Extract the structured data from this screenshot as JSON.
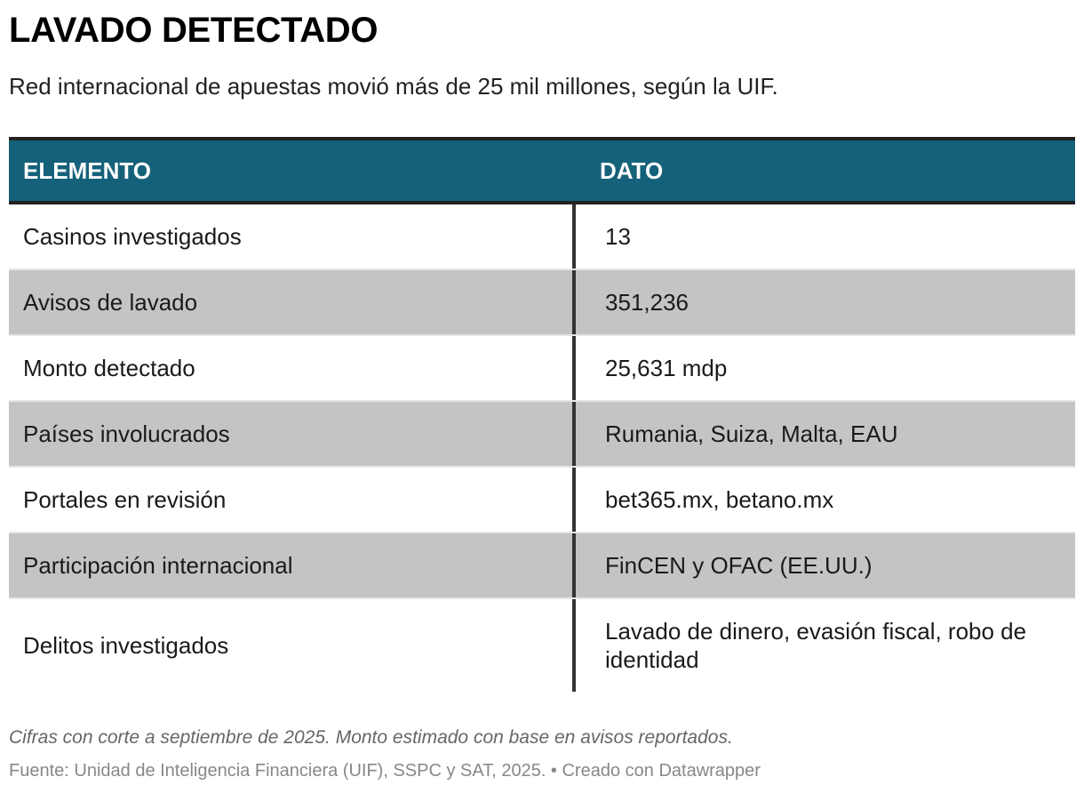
{
  "chart_data": {
    "type": "table",
    "title": "LAVADO DETECTADO",
    "subtitle": "Red internacional de apuestas movió más de 25 mil millones, según la UIF.",
    "columns": [
      "ELEMENTO",
      "DATO"
    ],
    "rows": [
      [
        "Casinos investigados",
        "13"
      ],
      [
        "Avisos de lavado",
        "351,236"
      ],
      [
        "Monto detectado",
        "25,631 mdp"
      ],
      [
        "Países involucrados",
        "Rumania, Suiza, Malta, EAU"
      ],
      [
        "Portales en revisión",
        "bet365.mx, betano.mx"
      ],
      [
        "Participación internacional",
        "FinCEN y OFAC (EE.UU.)"
      ],
      [
        "Delitos investigados",
        "Lavado de dinero, evasión fiscal, robo de identidad"
      ]
    ],
    "notes": "Cifras con corte a septiembre de 2025. Monto estimado con base en avisos reportados.",
    "source": "Fuente: Unidad de Inteligencia Financiera (UIF), SSPC y SAT, 2025. • Creado con Datawrapper",
    "colors": {
      "header_bg": "#16617a",
      "alt_row_bg": "#c4c4c4"
    }
  }
}
